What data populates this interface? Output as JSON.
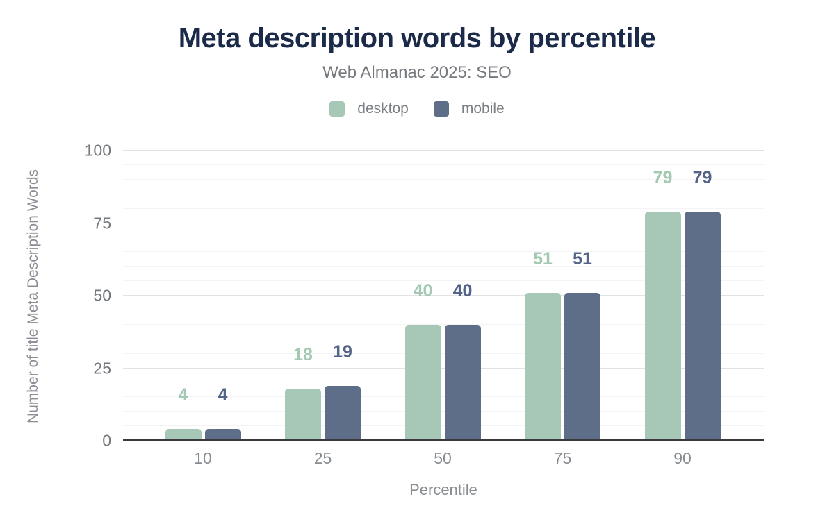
{
  "chart_data": {
    "type": "bar",
    "title": "Meta description words by percentile",
    "subtitle": "Web Almanac 2025: SEO",
    "xlabel": "Percentile",
    "ylabel": "Number of title Meta Description Words",
    "categories": [
      "10",
      "25",
      "50",
      "75",
      "90"
    ],
    "series": [
      {
        "name": "desktop",
        "color": "#a8c8b7",
        "label_color": "#a4c9b3",
        "values": [
          4,
          18,
          40,
          51,
          79
        ]
      },
      {
        "name": "mobile",
        "color": "#5e6e89",
        "label_color": "#546489",
        "values": [
          4,
          19,
          40,
          51,
          79
        ]
      }
    ],
    "ylim": [
      0,
      100
    ],
    "yticks": [
      0,
      25,
      50,
      75,
      100
    ],
    "minor_grid_step": 5,
    "grid": "horizontal",
    "legend_position": "top",
    "bar_labels": true
  },
  "colors": {
    "title": "#1b2a49",
    "subtitle": "#76797e",
    "axis_line": "#3a3a3e",
    "grid_major": "#e2e2e6",
    "grid_minor": "#f3f3f6",
    "tick_text": "#74787d",
    "background": "#ffffff"
  }
}
